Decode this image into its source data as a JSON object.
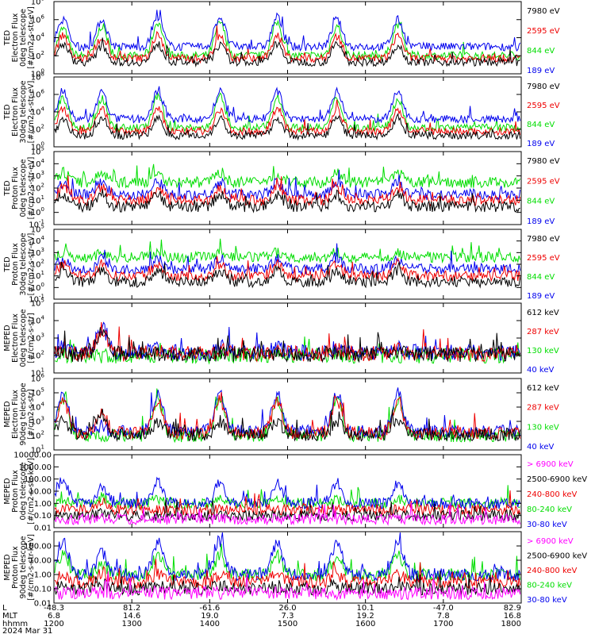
{
  "colors": {
    "blue": "#0000ee",
    "red": "#ee0000",
    "green": "#00dd00",
    "black": "#000000",
    "magenta": "#ff00ff"
  },
  "footer": {
    "row_labels": [
      "L",
      "MLT",
      "hhmm"
    ],
    "date": "2024 Mar 31"
  },
  "chart_data": [
    {
      "type": "line",
      "panel": 1,
      "ylabel_lines": [
        "TED",
        "Electron Flux",
        "0deg telescope",
        "[#/cm2-s-str-eV]"
      ],
      "yscale": "log",
      "ylim": [
        1,
        100000000
      ],
      "yticks": [
        {
          "v": 1,
          "t": "10^0"
        },
        {
          "v": 100,
          "t": "10^2"
        },
        {
          "v": 10000,
          "t": "10^4"
        },
        {
          "v": 1000000,
          "t": "10^6"
        },
        {
          "v": 100000000,
          "t": "10^8"
        }
      ],
      "series": [
        {
          "name": "7980 eV",
          "color": "black",
          "baseline": 20,
          "peaks": [
            2000,
            1000,
            2000,
            1500,
            2000,
            2000,
            1500
          ]
        },
        {
          "name": "2595 eV",
          "color": "red",
          "baseline": 50,
          "peaks": [
            20000,
            10000,
            20000,
            20000,
            20000,
            15000,
            20000
          ]
        },
        {
          "name": "844 eV",
          "color": "green",
          "baseline": 100,
          "peaks": [
            100000,
            200000,
            500000,
            500000,
            500000,
            200000,
            300000
          ]
        },
        {
          "name": "189 eV",
          "color": "blue",
          "baseline": 1000,
          "peaks": [
            1000000,
            1000000,
            2000000,
            2000000,
            2000000,
            1000000,
            1000000
          ]
        }
      ]
    },
    {
      "type": "line",
      "panel": 2,
      "ylabel_lines": [
        "TED",
        "Electron Flux",
        "30deg telescope",
        "[#/cm2-s-str-eV]"
      ],
      "yscale": "log",
      "ylim": [
        1,
        100000000
      ],
      "yticks": [
        {
          "v": 1,
          "t": "10^0"
        },
        {
          "v": 100,
          "t": "10^2"
        },
        {
          "v": 10000,
          "t": "10^4"
        },
        {
          "v": 1000000,
          "t": "10^6"
        },
        {
          "v": 100000000,
          "t": "10^8"
        }
      ],
      "series": [
        {
          "name": "7980 eV",
          "color": "black",
          "baseline": 20,
          "peaks": [
            2000,
            2000,
            2000,
            2000,
            2000,
            2000,
            2000
          ]
        },
        {
          "name": "2595 eV",
          "color": "red",
          "baseline": 60,
          "peaks": [
            20000,
            20000,
            20000,
            20000,
            20000,
            20000,
            20000
          ]
        },
        {
          "name": "844 eV",
          "color": "green",
          "baseline": 150,
          "peaks": [
            300000,
            300000,
            500000,
            500000,
            500000,
            300000,
            300000
          ]
        },
        {
          "name": "189 eV",
          "color": "blue",
          "baseline": 1500,
          "peaks": [
            2000000,
            2000000,
            2000000,
            2000000,
            2000000,
            2000000,
            2000000
          ]
        }
      ]
    },
    {
      "type": "line",
      "panel": 3,
      "ylabel_lines": [
        "TED",
        "Proton Flux",
        "0deg telescope",
        "[#/cm2-s-str-eV]"
      ],
      "yscale": "log",
      "ylim": [
        0.1,
        100000
      ],
      "yticks": [
        {
          "v": 0.1,
          "t": "10^-1"
        },
        {
          "v": 1,
          "t": "10^0"
        },
        {
          "v": 10,
          "t": "10^1"
        },
        {
          "v": 100,
          "t": "10^2"
        },
        {
          "v": 1000,
          "t": "10^3"
        },
        {
          "v": 10000,
          "t": "10^4"
        },
        {
          "v": 100000,
          "t": "10^5"
        }
      ],
      "series": [
        {
          "name": "7980 eV",
          "color": "black",
          "baseline": 3,
          "peaks": [
            30,
            30,
            30,
            30,
            30,
            30,
            30
          ]
        },
        {
          "name": "2595 eV",
          "color": "red",
          "baseline": 10,
          "peaks": [
            100,
            100,
            100,
            100,
            100,
            100,
            100
          ]
        },
        {
          "name": "844 eV",
          "color": "green",
          "baseline": 300,
          "peaks": [
            2000,
            1500,
            1500,
            2000,
            1500,
            1500,
            1500
          ]
        },
        {
          "name": "189 eV",
          "color": "blue",
          "baseline": 30,
          "peaks": [
            200,
            300,
            300,
            300,
            300,
            300,
            300
          ]
        }
      ]
    },
    {
      "type": "line",
      "panel": 4,
      "ylabel_lines": [
        "TED",
        "Proton Flux",
        "30deg telescope",
        "[#/cm2-s-str-eV]"
      ],
      "yscale": "log",
      "ylim": [
        0.1,
        100000
      ],
      "yticks": [
        {
          "v": 0.1,
          "t": "10^-1"
        },
        {
          "v": 1,
          "t": "10^0"
        },
        {
          "v": 10,
          "t": "10^1"
        },
        {
          "v": 100,
          "t": "10^2"
        },
        {
          "v": 1000,
          "t": "10^3"
        },
        {
          "v": 10000,
          "t": "10^4"
        },
        {
          "v": 100000,
          "t": "10^5"
        }
      ],
      "series": [
        {
          "name": "7980 eV",
          "color": "black",
          "baseline": 3,
          "peaks": [
            30,
            30,
            30,
            30,
            30,
            30,
            30
          ]
        },
        {
          "name": "2595 eV",
          "color": "red",
          "baseline": 10,
          "peaks": [
            100,
            100,
            100,
            100,
            100,
            100,
            100
          ]
        },
        {
          "name": "844 eV",
          "color": "green",
          "baseline": 400,
          "peaks": [
            1000,
            1000,
            1000,
            1000,
            1000,
            1000,
            1000
          ]
        },
        {
          "name": "189 eV",
          "color": "blue",
          "baseline": 40,
          "peaks": [
            300,
            300,
            300,
            300,
            300,
            300,
            300
          ]
        }
      ]
    },
    {
      "type": "line",
      "panel": 5,
      "ylabel_lines": [
        "MEPED",
        "Electron Flux",
        "0deg telescope",
        "[#/cm2-s-str]"
      ],
      "yscale": "log",
      "ylim": [
        10,
        100000
      ],
      "yticks": [
        {
          "v": 10,
          "t": "10^1"
        },
        {
          "v": 100,
          "t": "10^2"
        },
        {
          "v": 1000,
          "t": "10^3"
        },
        {
          "v": 10000,
          "t": "10^4"
        },
        {
          "v": 100000,
          "t": "10^5"
        }
      ],
      "series": [
        {
          "name": "612 keV",
          "color": "black",
          "baseline": 120,
          "peaks": [
            130,
            3000,
            130,
            130,
            130,
            130,
            130
          ]
        },
        {
          "name": "287 keV",
          "color": "red",
          "baseline": 130,
          "peaks": [
            200,
            3500,
            200,
            200,
            200,
            200,
            200
          ]
        },
        {
          "name": "130 keV",
          "color": "green",
          "baseline": 100,
          "peaks": [
            100,
            100,
            100,
            100,
            100,
            100,
            100
          ]
        },
        {
          "name": "40 keV",
          "color": "blue",
          "baseline": 150,
          "peaks": [
            300,
            5000,
            400,
            300,
            300,
            300,
            300
          ]
        }
      ]
    },
    {
      "type": "line",
      "panel": 6,
      "ylabel_lines": [
        "MEPED",
        "Electron Flux",
        "90deg telescope",
        "[#/cm2-s-str]"
      ],
      "yscale": "log",
      "ylim": [
        10,
        1000000
      ],
      "yticks": [
        {
          "v": 10,
          "t": "10^1"
        },
        {
          "v": 100,
          "t": "10^2"
        },
        {
          "v": 1000,
          "t": "10^3"
        },
        {
          "v": 10000,
          "t": "10^4"
        },
        {
          "v": 100000,
          "t": "10^5"
        },
        {
          "v": 1000000,
          "t": "10^6"
        }
      ],
      "series": [
        {
          "name": "612 keV",
          "color": "black",
          "baseline": 120,
          "peaks": [
            1000,
            3000,
            1000,
            1000,
            1000,
            1000,
            1000
          ]
        },
        {
          "name": "287 keV",
          "color": "red",
          "baseline": 150,
          "peaks": [
            30000,
            3000,
            30000,
            30000,
            30000,
            30000,
            30000
          ]
        },
        {
          "name": "130 keV",
          "color": "green",
          "baseline": 100,
          "peaks": [
            40000,
            100,
            40000,
            40000,
            40000,
            40000,
            40000
          ]
        },
        {
          "name": "40 keV",
          "color": "blue",
          "baseline": 200,
          "peaks": [
            100000,
            300,
            100000,
            100000,
            100000,
            100000,
            100000
          ]
        }
      ]
    },
    {
      "type": "line",
      "panel": 7,
      "ylabel_lines": [
        "MEPED",
        "Proton Flux",
        "0deg telescope",
        "[#/cm2-s-str-keV]"
      ],
      "yscale": "log",
      "ylim": [
        0.01,
        10000
      ],
      "yticks": [
        {
          "v": 0.01,
          "t": "0.01"
        },
        {
          "v": 0.1,
          "t": "0.10"
        },
        {
          "v": 1,
          "t": "1.00"
        },
        {
          "v": 10,
          "t": "10.00"
        },
        {
          "v": 100,
          "t": "100.00"
        },
        {
          "v": 1000,
          "t": "1000.00"
        },
        {
          "v": 10000,
          "t": "10000.00"
        }
      ],
      "series": [
        {
          "name": "> 6900 keV",
          "color": "magenta",
          "baseline": 0.05,
          "peaks": [
            0.05,
            0.06,
            0.05,
            0.05,
            0.05,
            0.05,
            0.05
          ]
        },
        {
          "name": "2500-6900 keV",
          "color": "black",
          "baseline": 0.1,
          "peaks": [
            0.1,
            0.15,
            0.1,
            0.1,
            0.1,
            0.1,
            0.1
          ]
        },
        {
          "name": "240-800 keV",
          "color": "red",
          "baseline": 0.3,
          "peaks": [
            0.3,
            1.5,
            0.3,
            0.3,
            0.3,
            0.3,
            0.3
          ]
        },
        {
          "name": "80-240 keV",
          "color": "green",
          "baseline": 1,
          "peaks": [
            2,
            3,
            2,
            2,
            2,
            2,
            2
          ]
        },
        {
          "name": "30-80 keV",
          "color": "blue",
          "baseline": 1,
          "peaks": [
            100,
            20,
            50,
            50,
            50,
            50,
            50
          ]
        }
      ]
    },
    {
      "type": "line",
      "panel": 8,
      "ylabel_lines": [
        "MEPED",
        "Proton Flux",
        "90deg telescope",
        "[#/cm2-s-str-keV]"
      ],
      "yscale": "log",
      "ylim": [
        0.01,
        1000
      ],
      "yticks": [
        {
          "v": 0.01,
          "t": "0.01"
        },
        {
          "v": 0.1,
          "t": "0.10"
        },
        {
          "v": 1,
          "t": "1.00"
        },
        {
          "v": 10,
          "t": "10.00"
        },
        {
          "v": 100,
          "t": "100.00"
        }
      ],
      "series": [
        {
          "name": "> 6900 keV",
          "color": "magenta",
          "baseline": 0.05,
          "peaks": [
            0.05,
            0.06,
            0.05,
            0.05,
            0.05,
            0.05,
            0.05
          ]
        },
        {
          "name": "2500-6900 keV",
          "color": "black",
          "baseline": 0.1,
          "peaks": [
            0.15,
            0.2,
            0.15,
            0.15,
            0.15,
            0.15,
            0.15
          ]
        },
        {
          "name": "240-800 keV",
          "color": "red",
          "baseline": 0.3,
          "peaks": [
            1,
            1.5,
            1,
            1,
            1,
            1,
            1
          ]
        },
        {
          "name": "80-240 keV",
          "color": "green",
          "baseline": 1,
          "peaks": [
            20,
            5,
            20,
            20,
            20,
            20,
            20
          ]
        },
        {
          "name": "30-80 keV",
          "color": "blue",
          "baseline": 1,
          "peaks": [
            200,
            30,
            200,
            200,
            200,
            200,
            200
          ]
        }
      ]
    }
  ],
  "x_axis": {
    "ticks": [
      {
        "L": "-48.3",
        "MLT": "6.8",
        "hhmm": "1200"
      },
      {
        "L": "81.2",
        "MLT": "14.6",
        "hhmm": "1300"
      },
      {
        "L": "-61.6",
        "MLT": "19.0",
        "hhmm": "1400"
      },
      {
        "L": "26.0",
        "MLT": "7.3",
        "hhmm": "1500"
      },
      {
        "L": "10.1",
        "MLT": "19.2",
        "hhmm": "1600"
      },
      {
        "L": "-47.0",
        "MLT": "7.8",
        "hhmm": "1700"
      },
      {
        "L": "82.9",
        "MLT": "16.8",
        "hhmm": "1800"
      }
    ],
    "time_range": [
      1200,
      1800
    ],
    "event_times_hhmm": [
      "1207",
      "1237",
      "1320",
      "1408",
      "1452",
      "1538",
      "1625"
    ]
  }
}
